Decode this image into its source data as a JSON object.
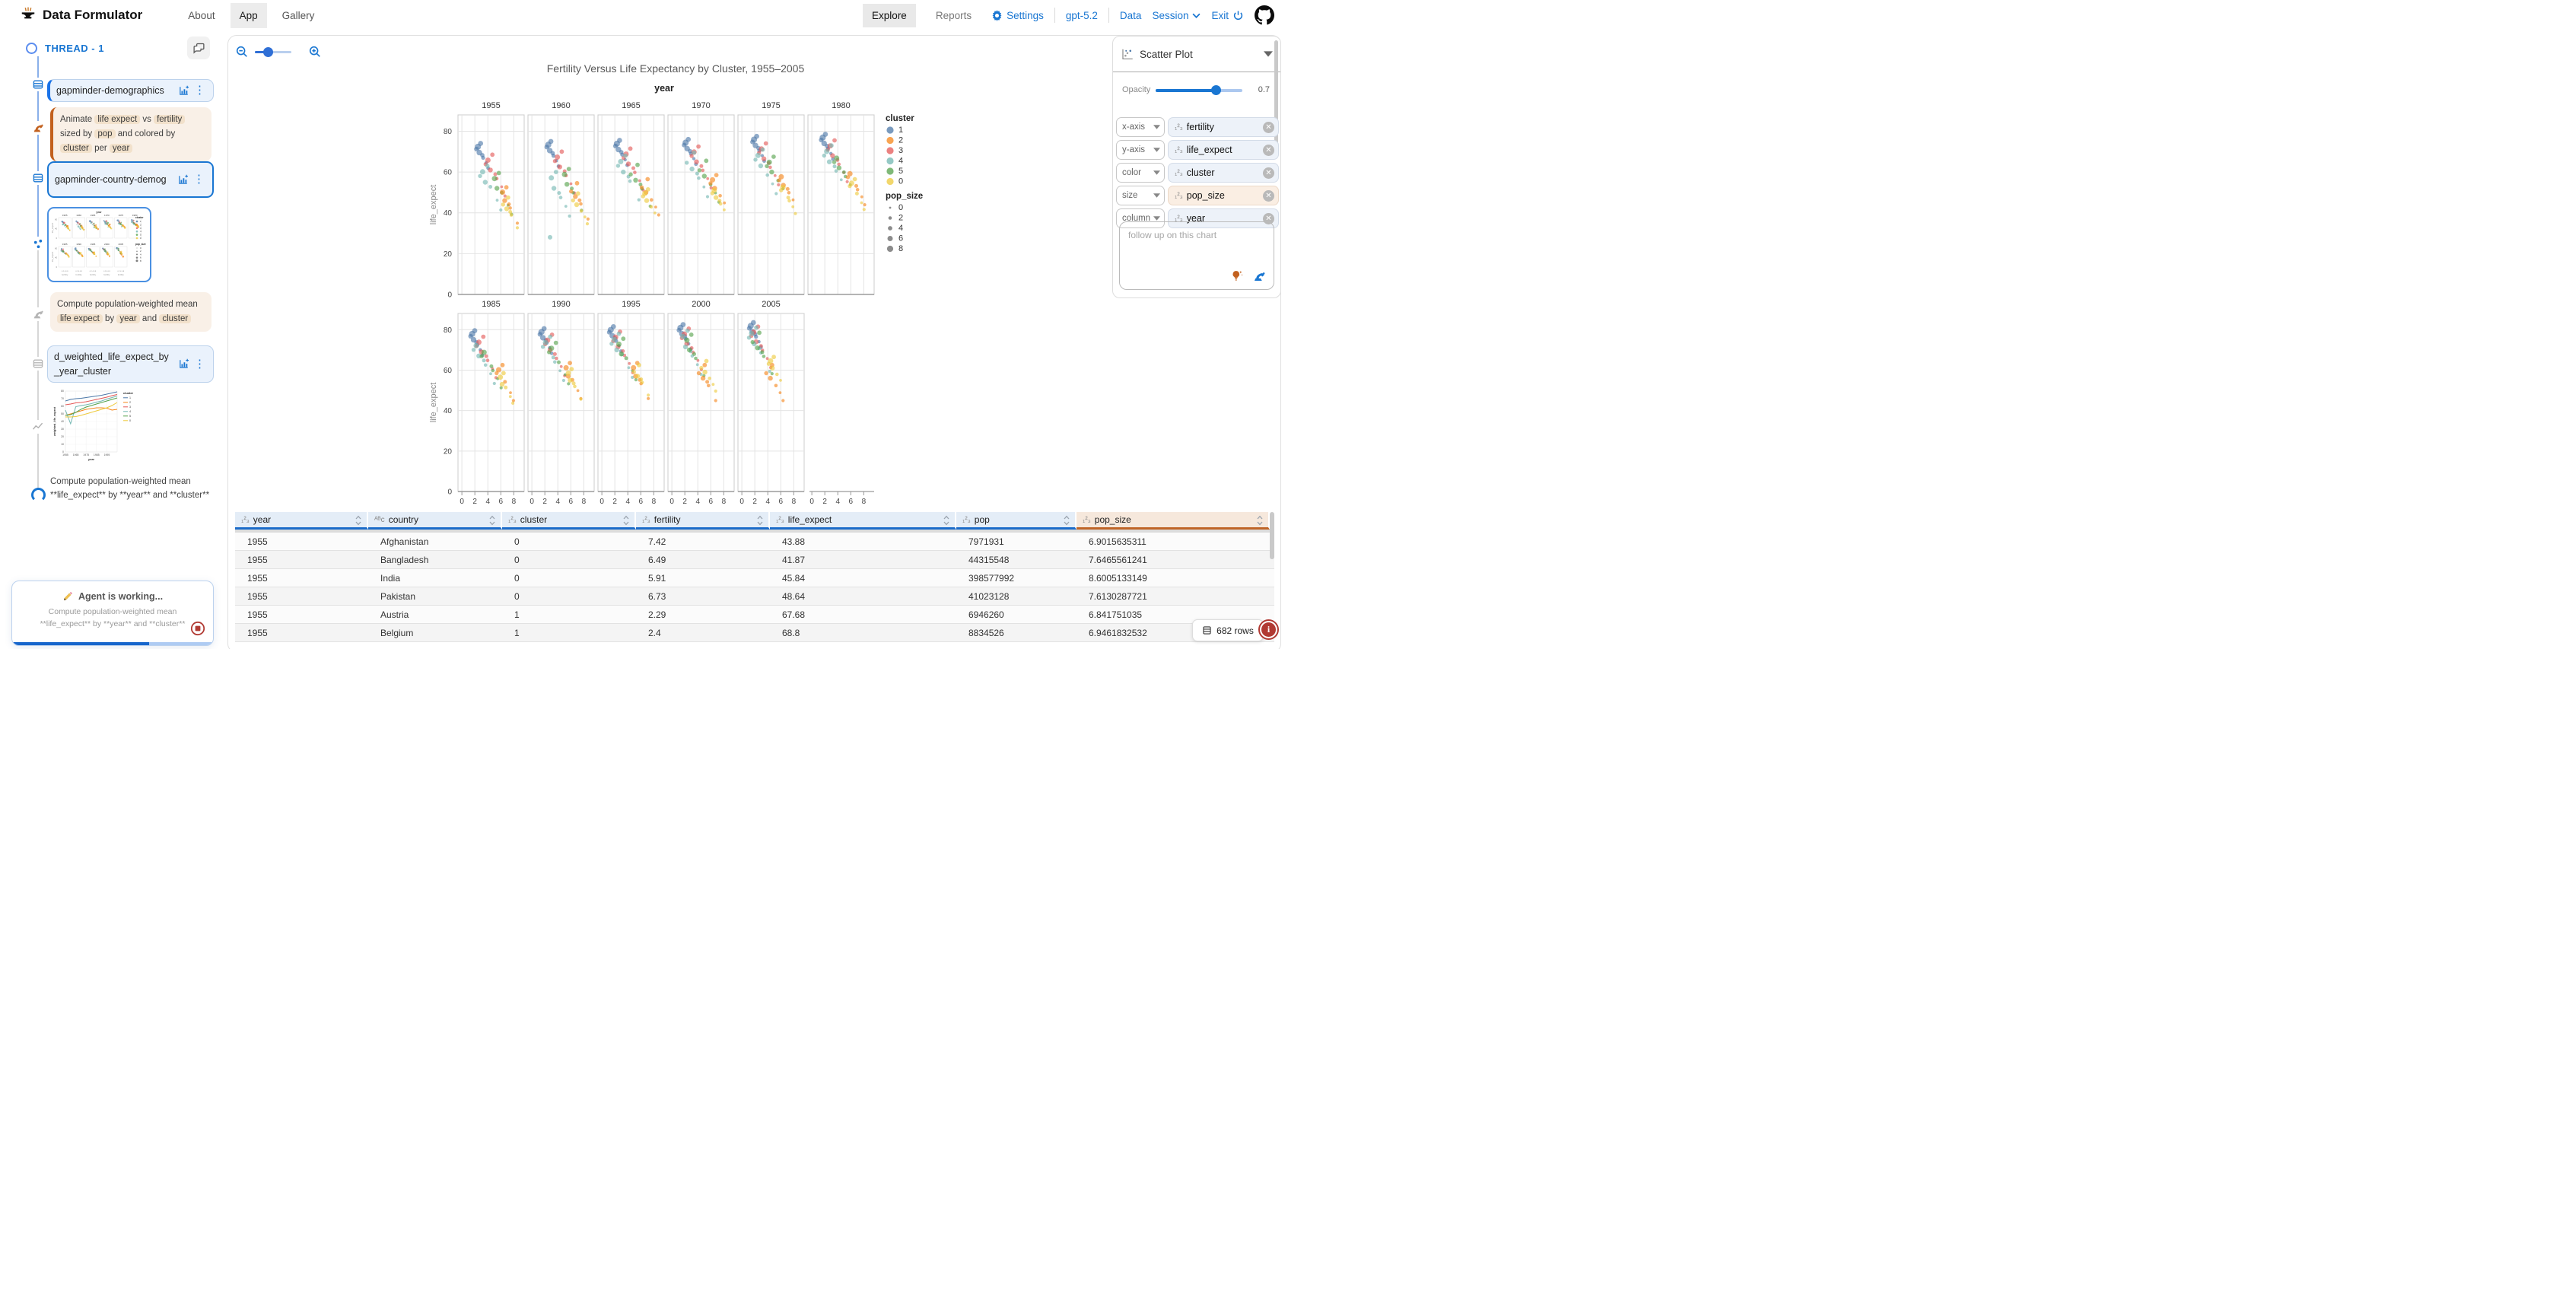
{
  "header": {
    "app_title": "Data Formulator",
    "nav": [
      {
        "label": "About",
        "active": false
      },
      {
        "label": "App",
        "active": true
      },
      {
        "label": "Gallery",
        "active": false
      }
    ],
    "view_tabs": [
      {
        "label": "Explore",
        "active": true
      },
      {
        "label": "Reports",
        "active": false
      }
    ],
    "settings_label": "Settings",
    "model_label": "gpt-5.2",
    "data_label": "Data",
    "session_label": "Session",
    "exit_label": "Exit"
  },
  "sidebar": {
    "thread_label": "THREAD - 1",
    "dataset_cards": [
      {
        "name": "gapminder-demographics"
      },
      {
        "name": "gapminder-country-demog"
      },
      {
        "name": "d_weighted_life_expect_by_year_cluster"
      }
    ],
    "prompt_1": [
      {
        "t": "Animate",
        "chip": false
      },
      {
        "t": "life expect",
        "chip": true
      },
      {
        "t": "vs",
        "chip": false
      },
      {
        "t": "fertility",
        "chip": true
      },
      {
        "t": "sized by",
        "chip": false
      },
      {
        "t": "pop",
        "chip": true
      },
      {
        "t": "and colored by",
        "chip": false
      },
      {
        "t": "cluster",
        "chip": true
      },
      {
        "t": "per",
        "chip": false
      },
      {
        "t": "year",
        "chip": true
      }
    ],
    "prompt_2": [
      {
        "t": "Compute population-weighted mean",
        "chip": false
      },
      {
        "t": "life expect",
        "chip": true
      },
      {
        "t": "by",
        "chip": false
      },
      {
        "t": "year",
        "chip": true
      },
      {
        "t": "and",
        "chip": false
      },
      {
        "t": "cluster",
        "chip": true
      }
    ],
    "message_3": "Compute population-weighted mean **life_expect** by **year** and **cluster**",
    "agent_box": {
      "title": "Agent is working...",
      "detail": "Compute population-weighted mean **life_expect** by **year** and **cluster**"
    }
  },
  "chart_panel": {
    "chart_type_label": "Scatter Plot",
    "opacity_label": "Opacity",
    "opacity_value": "0.7",
    "shelves": [
      {
        "channel": "x-axis",
        "field": "fertility",
        "derived": false
      },
      {
        "channel": "y-axis",
        "field": "life_expect",
        "derived": false
      },
      {
        "channel": "color",
        "field": "cluster",
        "derived": false
      },
      {
        "channel": "size",
        "field": "pop_size",
        "derived": true
      },
      {
        "channel": "column",
        "field": "year",
        "derived": false
      }
    ],
    "followup_placeholder": "follow up on this chart"
  },
  "table": {
    "columns": [
      {
        "name": "year",
        "type": "number",
        "derived": false
      },
      {
        "name": "country",
        "type": "string",
        "derived": false
      },
      {
        "name": "cluster",
        "type": "number",
        "derived": false
      },
      {
        "name": "fertility",
        "type": "number",
        "derived": false
      },
      {
        "name": "life_expect",
        "type": "number",
        "derived": false
      },
      {
        "name": "pop",
        "type": "number",
        "derived": false
      },
      {
        "name": "pop_size",
        "type": "number",
        "derived": true
      }
    ],
    "rows": [
      [
        "1955",
        "Afghanistan",
        "0",
        "7.42",
        "43.88",
        "7971931",
        "6.9015635311"
      ],
      [
        "1955",
        "Bangladesh",
        "0",
        "6.49",
        "41.87",
        "44315548",
        "7.6465561241"
      ],
      [
        "1955",
        "India",
        "0",
        "5.91",
        "45.84",
        "398577992",
        "8.6005133149"
      ],
      [
        "1955",
        "Pakistan",
        "0",
        "6.73",
        "48.64",
        "41023128",
        "7.6130287721"
      ],
      [
        "1955",
        "Austria",
        "1",
        "2.29",
        "67.68",
        "6946260",
        "6.841751035"
      ],
      [
        "1955",
        "Belgium",
        "1",
        "2.4",
        "68.8",
        "8834526",
        "6.9461832532"
      ]
    ],
    "row_count_label": "682 rows"
  },
  "colors": {
    "accent_blue": "#1976d2",
    "derived_orange": "#c2611f",
    "table_header_blue": "#1a6bc9",
    "selection_blue": "#4a90e2"
  },
  "chart_data": [
    {
      "type": "scatter",
      "title": "Fertility Versus Life Expectancy by Cluster, 1955–2005",
      "facet_field": "year",
      "x_field": "fertility",
      "y_field": "life_expect",
      "x_domain": [
        -0.6,
        9.6
      ],
      "x_ticks": [
        0,
        2,
        4,
        6,
        8
      ],
      "y_domain": [
        0,
        88
      ],
      "y_ticks": [
        0,
        20,
        40,
        60,
        80
      ],
      "years": [
        1955,
        1960,
        1965,
        1970,
        1975,
        1980,
        1985,
        1990,
        1995,
        2000,
        2005
      ],
      "opacity": 0.7,
      "legend": {
        "color_title": "cluster",
        "color_labels": [
          "1",
          "2",
          "3",
          "4",
          "5",
          "0"
        ],
        "size_title": "pop_size",
        "size_labels": [
          "0",
          "2",
          "4",
          "6",
          "8"
        ],
        "size_radii": [
          1.4,
          2.3,
          2.9,
          3.5,
          4.1
        ]
      },
      "cluster_colors": {
        "1": "#4c78a8",
        "2": "#f58518",
        "3": "#e45756",
        "4": "#72b7b2",
        "5": "#54a24b",
        "0": "#eeca3b"
      },
      "draw_order": [
        "1",
        "3",
        "4",
        "5",
        "2",
        "0"
      ],
      "cluster_counts": {
        "1": 8,
        "3": 8,
        "4": 7,
        "5": 6,
        "2": 6,
        "0": 6
      },
      "cluster_spread": {
        "1": 0.9,
        "3": 1.5,
        "4": 1.6,
        "5": 1.5,
        "2": 1.3,
        "0": 1.1
      },
      "jitter": [
        [
          0,
          0
        ],
        [
          0.65,
          -2.8
        ],
        [
          -0.5,
          1.9
        ],
        [
          1.15,
          -5.5
        ],
        [
          -0.25,
          3.2
        ],
        [
          0.5,
          -1.4
        ],
        [
          1.5,
          -8.5
        ],
        [
          0.2,
          5.0
        ]
      ],
      "radii": [
        3.2,
        2.3,
        2.7,
        1.9,
        3.5,
        2.5,
        2.1,
        2.9
      ],
      "centroids": {
        "1": [
          [
            2.7,
            69.5
          ],
          [
            2.75,
            70.5
          ],
          [
            2.55,
            71
          ],
          [
            2.35,
            71.5
          ],
          [
            2.1,
            73
          ],
          [
            1.9,
            74
          ],
          [
            1.8,
            75
          ],
          [
            1.7,
            76
          ],
          [
            1.6,
            77
          ],
          [
            1.55,
            78
          ],
          [
            1.6,
            79
          ]
        ],
        "2": [
          [
            6.6,
            46
          ],
          [
            6.7,
            48
          ],
          [
            6.8,
            50
          ],
          [
            6.6,
            52
          ],
          [
            6.4,
            53.5
          ],
          [
            6.2,
            55
          ],
          [
            6.0,
            56
          ],
          [
            5.6,
            57
          ],
          [
            5.2,
            57
          ],
          [
            4.8,
            56
          ],
          [
            4.4,
            56
          ]
        ],
        "3": [
          [
            4.4,
            61
          ],
          [
            4.3,
            62.5
          ],
          [
            4.1,
            64
          ],
          [
            3.8,
            65
          ],
          [
            3.4,
            66.5
          ],
          [
            3.2,
            68
          ],
          [
            3.0,
            69
          ],
          [
            2.8,
            70
          ],
          [
            2.5,
            71.5
          ],
          [
            2.3,
            73
          ],
          [
            2.2,
            74
          ]
        ],
        "4": [
          [
            3.6,
            55
          ],
          [
            3.4,
            52
          ],
          [
            3.3,
            60
          ],
          [
            3.1,
            61.5
          ],
          [
            2.9,
            63
          ],
          [
            2.7,
            65
          ],
          [
            2.6,
            67
          ],
          [
            2.5,
            68.5
          ],
          [
            2.3,
            70
          ],
          [
            2.1,
            71.5
          ],
          [
            1.9,
            73
          ]
        ],
        "5": [
          [
            5.4,
            52
          ],
          [
            5.4,
            54
          ],
          [
            5.2,
            56
          ],
          [
            5.0,
            58
          ],
          [
            4.6,
            60
          ],
          [
            4.2,
            62
          ],
          [
            3.8,
            64
          ],
          [
            3.4,
            66
          ],
          [
            3.0,
            68
          ],
          [
            2.7,
            70
          ],
          [
            2.4,
            71
          ]
        ],
        "0": [
          [
            6.9,
            42
          ],
          [
            6.9,
            44
          ],
          [
            6.9,
            46
          ],
          [
            6.8,
            47.5
          ],
          [
            6.6,
            49
          ],
          [
            6.4,
            51
          ],
          [
            6.2,
            53
          ],
          [
            5.9,
            55
          ],
          [
            5.5,
            57
          ],
          [
            5.1,
            59
          ],
          [
            4.7,
            61
          ]
        ]
      },
      "outliers": [
        {
          "year": 1960,
          "cluster": "4",
          "x": 2.8,
          "y": 28,
          "r": 3
        }
      ]
    },
    {
      "type": "line",
      "x_label": "year",
      "y_label": "weighted_life_expect",
      "x": [
        1955,
        1960,
        1965,
        1970,
        1975,
        1980,
        1985,
        1990,
        1995,
        2000,
        2005
      ],
      "y_domain": [
        0,
        80
      ],
      "y_ticks": [
        0,
        10,
        20,
        30,
        40,
        50,
        60,
        70,
        80
      ],
      "x_tick_labels": [
        1955,
        1965,
        1975,
        1985,
        1995
      ],
      "legend_title": "cluster",
      "series": [
        {
          "name": "1",
          "values": [
            67,
            69,
            70,
            70.5,
            71.5,
            72.5,
            73.5,
            74.5,
            76,
            77.5,
            79
          ]
        },
        {
          "name": "2",
          "values": [
            48,
            50,
            52,
            54,
            56,
            57,
            58,
            58,
            57.5,
            55,
            56
          ]
        },
        {
          "name": "3",
          "values": [
            62,
            63,
            64.5,
            65,
            66,
            67.5,
            69,
            70.5,
            72,
            74,
            75.5
          ]
        },
        {
          "name": "4",
          "values": [
            55,
            37,
            59.5,
            61,
            62,
            63.5,
            65.5,
            67,
            69.5,
            71.5,
            73.5
          ]
        },
        {
          "name": "5",
          "values": [
            48,
            49,
            52,
            56,
            59,
            61,
            63,
            65,
            67,
            69,
            71
          ]
        },
        {
          "name": "0",
          "values": [
            46,
            46,
            46.5,
            48,
            50,
            52,
            54,
            56,
            58,
            61,
            65
          ]
        }
      ]
    }
  ]
}
